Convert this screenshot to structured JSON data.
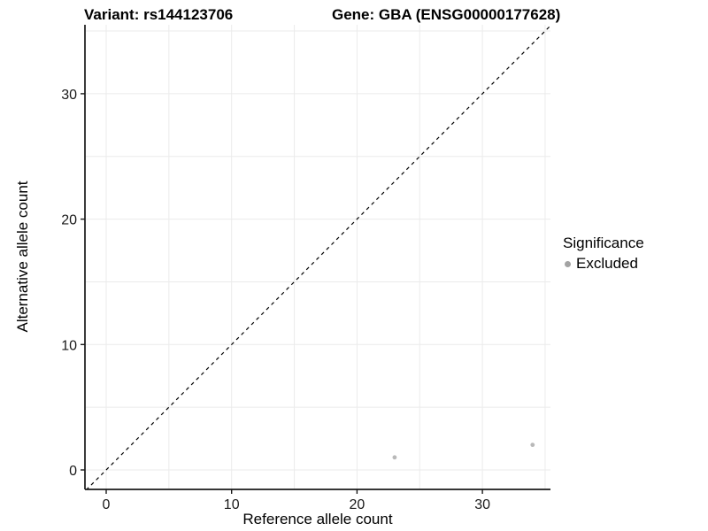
{
  "header": {
    "title_left": "Variant: rs144123706",
    "title_right": "Gene: GBA (ENSG00000177628)"
  },
  "chart_data": {
    "type": "scatter",
    "title_left": "Variant: rs144123706",
    "title_right": "Gene: GBA (ENSG00000177628)",
    "xlabel": "Reference allele count",
    "ylabel": "Alternative allele count",
    "xlim": [
      -1.7,
      35.5
    ],
    "ylim": [
      -1.6,
      35.5
    ],
    "x_ticks": [
      0,
      10,
      20,
      30
    ],
    "y_ticks": [
      0,
      10,
      20,
      30
    ],
    "grid": true,
    "gridline_values": [
      0,
      5,
      10,
      15,
      20,
      25,
      30,
      35
    ],
    "series": [
      {
        "name": "Excluded",
        "color": "#b9b9b9",
        "points": [
          {
            "x": 23,
            "y": 1
          },
          {
            "x": 34,
            "y": 2
          }
        ]
      }
    ],
    "reference_line": {
      "kind": "identity y=x",
      "style": "dashed",
      "color": "#000000"
    },
    "legend": {
      "title": "Significance",
      "position": "right",
      "entries": [
        {
          "label": "Excluded",
          "color": "#a3a3a3"
        }
      ]
    }
  },
  "colors": {
    "panel_background": "#ffffff",
    "gridline": "#ebebeb",
    "axis_line": "#1a1a1a",
    "point": "#b9b9b9",
    "legend_dot": "#a3a3a3"
  }
}
